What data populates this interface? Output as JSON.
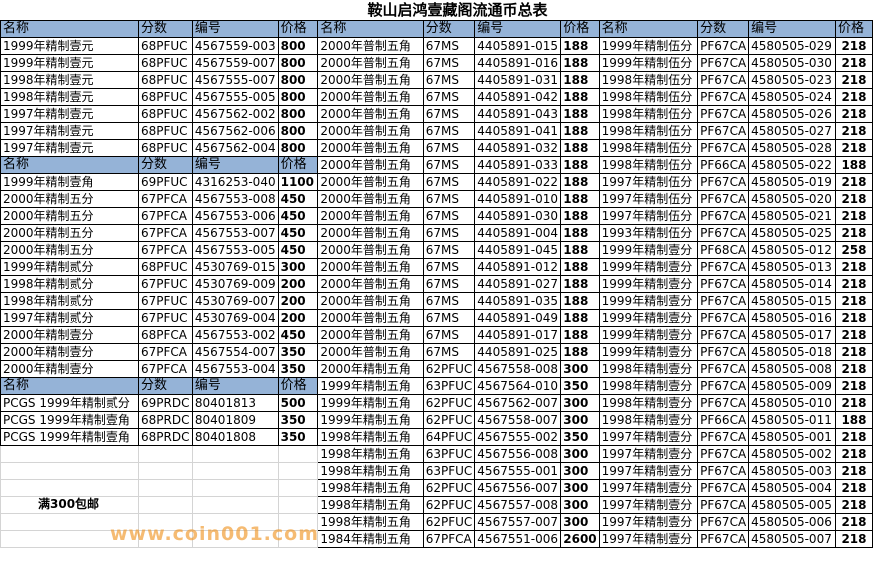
{
  "title": "鞍山启鸿壹藏阁流通币总表",
  "headers": [
    "名称",
    "分数",
    "编号",
    "价格"
  ],
  "header_color": "#95b3d7",
  "note": "满300包邮",
  "watermark": "www.coin001.com",
  "left_group": [
    {
      "type": "header"
    },
    {
      "name": "1999年精制壹元",
      "grade": "68PFUC",
      "cert": "4567559-003",
      "price": "800"
    },
    {
      "name": "1999年精制壹元",
      "grade": "68PFUC",
      "cert": "4567559-007",
      "price": "800"
    },
    {
      "name": "1998年精制壹元",
      "grade": "68PFUC",
      "cert": "4567555-007",
      "price": "800"
    },
    {
      "name": "1998年精制壹元",
      "grade": "68PFUC",
      "cert": "4567555-005",
      "price": "800"
    },
    {
      "name": "1997年精制壹元",
      "grade": "68PFUC",
      "cert": "4567562-002",
      "price": "800"
    },
    {
      "name": "1997年精制壹元",
      "grade": "68PFUC",
      "cert": "4567562-006",
      "price": "800"
    },
    {
      "name": "1997年精制壹元",
      "grade": "68PFUC",
      "cert": "4567562-004",
      "price": "800"
    },
    {
      "type": "header"
    },
    {
      "name": "1999年精制壹角",
      "grade": "69PFUC",
      "cert": "4316253-040",
      "price": "1100"
    },
    {
      "name": "2000年精制五分",
      "grade": "67PFCA",
      "cert": "4567553-008",
      "price": "450"
    },
    {
      "name": "2000年精制五分",
      "grade": "67PFCA",
      "cert": "4567553-006",
      "price": "450"
    },
    {
      "name": "2000年精制五分",
      "grade": "67PFCA",
      "cert": "4567553-007",
      "price": "450"
    },
    {
      "name": "2000年精制五分",
      "grade": "67PFCA",
      "cert": "4567553-005",
      "price": "450"
    },
    {
      "name": "1999年精制贰分",
      "grade": "68PFUC",
      "cert": "4530769-015",
      "price": "300"
    },
    {
      "name": "1998年精制贰分",
      "grade": "67PFUC",
      "cert": "4530769-009",
      "price": "200"
    },
    {
      "name": "1998年精制贰分",
      "grade": "67PFUC",
      "cert": "4530769-007",
      "price": "200"
    },
    {
      "name": "1997年精制贰分",
      "grade": "67PFUC",
      "cert": "4530769-004",
      "price": "200"
    },
    {
      "name": "2000年精制壹分",
      "grade": "68PFCA",
      "cert": "4567553-002",
      "price": "450"
    },
    {
      "name": "2000年精制壹分",
      "grade": "67PFCA",
      "cert": "4567554-007",
      "price": "350"
    },
    {
      "name": "2000年精制壹分",
      "grade": "67PFCA",
      "cert": "4567553-004",
      "price": "350"
    },
    {
      "type": "header"
    },
    {
      "name": "PCGS 1999年精制贰分",
      "grade": "69PRDC",
      "cert": "80401813",
      "price": "500"
    },
    {
      "name": "PCGS 1999年精制壹角",
      "grade": "68PRDC",
      "cert": "80401809",
      "price": "350"
    },
    {
      "name": "PCGS 1999年精制壹角",
      "grade": "68PRDC",
      "cert": "80401808",
      "price": "350"
    }
  ],
  "middle_group": [
    {
      "type": "header"
    },
    {
      "name": "2000年普制五角",
      "grade": "67MS",
      "cert": "4405891-015",
      "price": "188"
    },
    {
      "name": "2000年普制五角",
      "grade": "67MS",
      "cert": "4405891-016",
      "price": "188"
    },
    {
      "name": "2000年普制五角",
      "grade": "67MS",
      "cert": "4405891-031",
      "price": "188"
    },
    {
      "name": "2000年普制五角",
      "grade": "67MS",
      "cert": "4405891-042",
      "price": "188"
    },
    {
      "name": "2000年普制五角",
      "grade": "67MS",
      "cert": "4405891-043",
      "price": "188"
    },
    {
      "name": "2000年普制五角",
      "grade": "67MS",
      "cert": "4405891-041",
      "price": "188"
    },
    {
      "name": "2000年普制五角",
      "grade": "67MS",
      "cert": "4405891-032",
      "price": "188"
    },
    {
      "name": "2000年普制五角",
      "grade": "67MS",
      "cert": "4405891-033",
      "price": "188"
    },
    {
      "name": "2000年普制五角",
      "grade": "67MS",
      "cert": "4405891-022",
      "price": "188"
    },
    {
      "name": "2000年普制五角",
      "grade": "67MS",
      "cert": "4405891-010",
      "price": "188"
    },
    {
      "name": "2000年普制五角",
      "grade": "67MS",
      "cert": "4405891-030",
      "price": "188"
    },
    {
      "name": "2000年普制五角",
      "grade": "67MS",
      "cert": "4405891-004",
      "price": "188"
    },
    {
      "name": "2000年普制五角",
      "grade": "67MS",
      "cert": "4405891-045",
      "price": "188"
    },
    {
      "name": "2000年普制五角",
      "grade": "67MS",
      "cert": "4405891-012",
      "price": "188"
    },
    {
      "name": "2000年普制五角",
      "grade": "67MS",
      "cert": "4405891-027",
      "price": "188"
    },
    {
      "name": "2000年普制五角",
      "grade": "67MS",
      "cert": "4405891-035",
      "price": "188"
    },
    {
      "name": "2000年普制五角",
      "grade": "67MS",
      "cert": "4405891-049",
      "price": "188"
    },
    {
      "name": "2000年普制五角",
      "grade": "67MS",
      "cert": "4405891-017",
      "price": "188"
    },
    {
      "name": "2000年普制五角",
      "grade": "67MS",
      "cert": "4405891-025",
      "price": "188"
    },
    {
      "name": "2000年精制五角",
      "grade": "62PFUC",
      "cert": "4567558-008",
      "price": "300"
    },
    {
      "name": "1999年精制五角",
      "grade": "63PFUC",
      "cert": "4567564-010",
      "price": "350"
    },
    {
      "name": "1999年精制五角",
      "grade": "62PFUC",
      "cert": "4567562-007",
      "price": "300"
    },
    {
      "name": "1999年精制五角",
      "grade": "62PFUC",
      "cert": "4567558-007",
      "price": "300"
    },
    {
      "name": "1998年精制五角",
      "grade": "64PFUC",
      "cert": "4567555-002",
      "price": "350"
    },
    {
      "name": "1998年精制五角",
      "grade": "63PFUC",
      "cert": "4567556-008",
      "price": "300"
    },
    {
      "name": "1998年精制五角",
      "grade": "63PFUC",
      "cert": "4567555-001",
      "price": "300"
    },
    {
      "name": "1998年精制五角",
      "grade": "62PFUC",
      "cert": "4567556-007",
      "price": "300"
    },
    {
      "name": "1998年精制五角",
      "grade": "62PFUC",
      "cert": "4567557-008",
      "price": "300"
    },
    {
      "name": "1998年精制五角",
      "grade": "62PFUC",
      "cert": "4567557-007",
      "price": "300"
    },
    {
      "name": "1984年精制五角",
      "grade": "67PFCA",
      "cert": "4567551-006",
      "price": "2600"
    }
  ],
  "right_group": [
    {
      "type": "header"
    },
    {
      "name": "1999年精制伍分",
      "grade": "PF67CA",
      "cert": "4580505-029",
      "price": "218"
    },
    {
      "name": "1999年精制伍分",
      "grade": "PF67CA",
      "cert": "4580505-030",
      "price": "218"
    },
    {
      "name": "1998年精制伍分",
      "grade": "PF67CA",
      "cert": "4580505-023",
      "price": "218"
    },
    {
      "name": "1998年精制伍分",
      "grade": "PF67CA",
      "cert": "4580505-024",
      "price": "218"
    },
    {
      "name": "1998年精制伍分",
      "grade": "PF67CA",
      "cert": "4580505-026",
      "price": "218"
    },
    {
      "name": "1998年精制伍分",
      "grade": "PF67CA",
      "cert": "4580505-027",
      "price": "218"
    },
    {
      "name": "1998年精制伍分",
      "grade": "PF67CA",
      "cert": "4580505-028",
      "price": "218"
    },
    {
      "name": "1998年精制伍分",
      "grade": "PF66CA",
      "cert": "4580505-022",
      "price": "188"
    },
    {
      "name": "1997年精制伍分",
      "grade": "PF67CA",
      "cert": "4580505-019",
      "price": "218"
    },
    {
      "name": "1997年精制伍分",
      "grade": "PF67CA",
      "cert": "4580505-020",
      "price": "218"
    },
    {
      "name": "1997年精制伍分",
      "grade": "PF67CA",
      "cert": "4580505-021",
      "price": "218"
    },
    {
      "name": "1993年精制伍分",
      "grade": "PF67CA",
      "cert": "4580505-025",
      "price": "218"
    },
    {
      "name": "1999年精制壹分",
      "grade": "PF68CA",
      "cert": "4580505-012",
      "price": "258"
    },
    {
      "name": "1999年精制壹分",
      "grade": "PF67CA",
      "cert": "4580505-013",
      "price": "218"
    },
    {
      "name": "1999年精制壹分",
      "grade": "PF67CA",
      "cert": "4580505-014",
      "price": "218"
    },
    {
      "name": "1999年精制壹分",
      "grade": "PF67CA",
      "cert": "4580505-015",
      "price": "218"
    },
    {
      "name": "1999年精制壹分",
      "grade": "PF67CA",
      "cert": "4580505-016",
      "price": "218"
    },
    {
      "name": "1999年精制壹分",
      "grade": "PF67CA",
      "cert": "4580505-017",
      "price": "218"
    },
    {
      "name": "1999年精制壹分",
      "grade": "PF67CA",
      "cert": "4580505-018",
      "price": "218"
    },
    {
      "name": "1998年精制壹分",
      "grade": "PF67CA",
      "cert": "4580505-008",
      "price": "218"
    },
    {
      "name": "1998年精制壹分",
      "grade": "PF67CA",
      "cert": "4580505-009",
      "price": "218"
    },
    {
      "name": "1998年精制壹分",
      "grade": "PF67CA",
      "cert": "4580505-010",
      "price": "218"
    },
    {
      "name": "1998年精制壹分",
      "grade": "PF66CA",
      "cert": "4580505-011",
      "price": "188"
    },
    {
      "name": "1997年精制壹分",
      "grade": "PF67CA",
      "cert": "4580505-001",
      "price": "218"
    },
    {
      "name": "1997年精制壹分",
      "grade": "PF67CA",
      "cert": "4580505-002",
      "price": "218"
    },
    {
      "name": "1997年精制壹分",
      "grade": "PF67CA",
      "cert": "4580505-003",
      "price": "218"
    },
    {
      "name": "1997年精制壹分",
      "grade": "PF67CA",
      "cert": "4580505-004",
      "price": "218"
    },
    {
      "name": "1997年精制壹分",
      "grade": "PF67CA",
      "cert": "4580505-005",
      "price": "218"
    },
    {
      "name": "1997年精制壹分",
      "grade": "PF67CA",
      "cert": "4580505-006",
      "price": "218"
    },
    {
      "name": "1997年精制壹分",
      "grade": "PF67CA",
      "cert": "4580505-007",
      "price": "218"
    }
  ]
}
